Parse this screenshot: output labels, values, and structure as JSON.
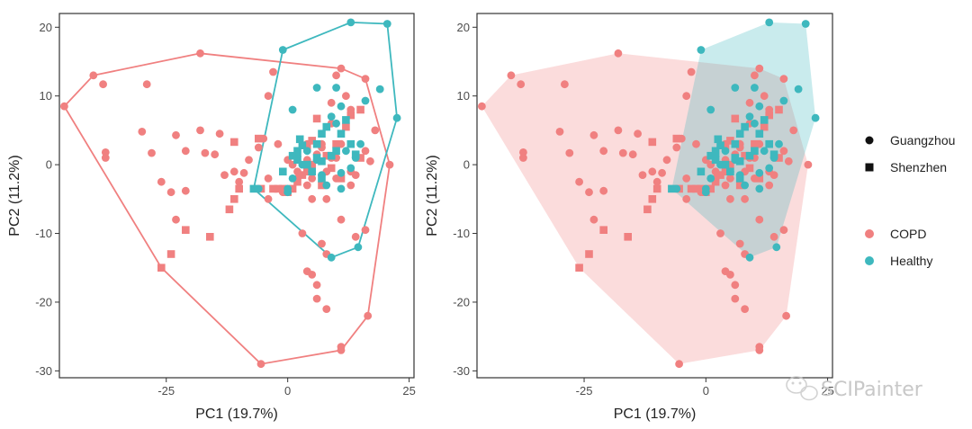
{
  "chart_data": [
    {
      "type": "scatter",
      "panel": "outline",
      "xlabel": "PC1 (19.7%)",
      "ylabel": "PC2 (11.2%)",
      "xlim": [
        -47,
        26
      ],
      "ylim": [
        -31,
        22
      ],
      "xticks": [
        -25,
        0,
        25
      ],
      "yticks": [
        -30,
        -20,
        -10,
        0,
        10,
        20
      ],
      "grid": false,
      "hull_style": "outline"
    },
    {
      "type": "scatter",
      "panel": "filled",
      "xlabel": "PC1 (19.7%)",
      "ylabel": "PC2 (11.2%)",
      "xlim": [
        -47,
        26
      ],
      "ylim": [
        -31,
        22
      ],
      "xticks": [
        -25,
        0,
        25
      ],
      "yticks": [
        -30,
        -20,
        -10,
        0,
        10,
        20
      ],
      "grid": false,
      "hull_style": "filled"
    }
  ],
  "groups": [
    {
      "name": "COPD",
      "color": "#F08080"
    },
    {
      "name": "Healthy",
      "color": "#3EB8BE"
    }
  ],
  "shapes": [
    {
      "name": "Guangzhou",
      "shape": "circle"
    },
    {
      "name": "Shenzhen",
      "shape": "square"
    }
  ],
  "points": {
    "COPD": {
      "Guangzhou": [
        [
          -46,
          8.5
        ],
        [
          -40,
          13
        ],
        [
          -38,
          11.7
        ],
        [
          -37.5,
          1.8
        ],
        [
          -37.5,
          1
        ],
        [
          -29,
          11.7
        ],
        [
          -30,
          4.8
        ],
        [
          -26,
          -2.5
        ],
        [
          -28,
          1.7
        ],
        [
          -24,
          -4
        ],
        [
          -23,
          -8
        ],
        [
          -23,
          4.3
        ],
        [
          -21,
          -3.8
        ],
        [
          -21,
          2
        ],
        [
          -18,
          5
        ],
        [
          -18,
          16.2
        ],
        [
          -17,
          1.7
        ],
        [
          -15,
          1.5
        ],
        [
          -14,
          4.5
        ],
        [
          -13,
          -1.5
        ],
        [
          -11,
          -1
        ],
        [
          -10,
          -2.5
        ],
        [
          -9,
          -1.2
        ],
        [
          -8,
          0.7
        ],
        [
          -6,
          2.5
        ],
        [
          -5,
          3.8
        ],
        [
          -5.5,
          -29
        ],
        [
          -4,
          10
        ],
        [
          -4,
          -2
        ],
        [
          -4,
          -5
        ],
        [
          -3,
          13.5
        ],
        [
          -2,
          3
        ],
        [
          -1,
          -4
        ],
        [
          0,
          0.7
        ],
        [
          1,
          0
        ],
        [
          2,
          -2
        ],
        [
          2,
          -1
        ],
        [
          3,
          -10
        ],
        [
          4,
          3
        ],
        [
          4,
          -3
        ],
        [
          4,
          0.7
        ],
        [
          4,
          -15.5
        ],
        [
          5,
          -16
        ],
        [
          5,
          -2
        ],
        [
          5,
          -5
        ],
        [
          6,
          -17.5
        ],
        [
          6,
          -19.5
        ],
        [
          6,
          1.5
        ],
        [
          7,
          2.5
        ],
        [
          7,
          -11.5
        ],
        [
          7,
          3
        ],
        [
          8,
          -1
        ],
        [
          8,
          -5
        ],
        [
          8,
          -13
        ],
        [
          8,
          -21
        ],
        [
          9,
          9
        ],
        [
          9,
          6
        ],
        [
          9,
          1
        ],
        [
          10,
          13
        ],
        [
          10,
          1
        ],
        [
          10,
          -2
        ],
        [
          11,
          -26.5
        ],
        [
          11,
          -27
        ],
        [
          11,
          -8
        ],
        [
          11,
          3
        ],
        [
          11,
          14
        ],
        [
          12,
          10
        ],
        [
          13,
          -3
        ],
        [
          13,
          -1
        ],
        [
          13,
          8
        ],
        [
          14,
          -1.5
        ],
        [
          14,
          -10.5
        ],
        [
          16,
          -9.5
        ],
        [
          16,
          12.5
        ],
        [
          16,
          2
        ],
        [
          16.5,
          -22
        ],
        [
          17,
          0.5
        ],
        [
          18,
          5
        ],
        [
          21,
          0
        ]
      ],
      "Shenzhen": [
        [
          -26,
          -15
        ],
        [
          -24,
          -13
        ],
        [
          -21,
          -9.5
        ],
        [
          -16,
          -10.5
        ],
        [
          -11,
          3.3
        ],
        [
          -12,
          -6.5
        ],
        [
          -11,
          -5
        ],
        [
          -10,
          -3.5
        ],
        [
          -5.5,
          -3.5
        ],
        [
          -6,
          3.8
        ],
        [
          -3,
          -3.5
        ],
        [
          -2,
          -3.5
        ],
        [
          -1,
          -3.5
        ],
        [
          0,
          -4
        ],
        [
          1,
          -3.5
        ],
        [
          2,
          -2.5
        ],
        [
          3,
          -1.5
        ],
        [
          4,
          -1
        ],
        [
          4,
          2.7
        ],
        [
          5,
          3.5
        ],
        [
          5,
          0
        ],
        [
          6,
          6.7
        ],
        [
          7,
          -3
        ],
        [
          8,
          1.3
        ],
        [
          9,
          -0.5
        ],
        [
          10,
          3
        ],
        [
          11,
          -2
        ],
        [
          12,
          5.5
        ],
        [
          13,
          7.2
        ],
        [
          15,
          1
        ],
        [
          15,
          8
        ]
      ]
    },
    "Healthy": {
      "Guangzhou": [
        [
          -1,
          16.7
        ],
        [
          1,
          8
        ],
        [
          6,
          11.2
        ],
        [
          10,
          11.2
        ],
        [
          11,
          8.5
        ],
        [
          11,
          -3.5
        ],
        [
          13,
          20.7
        ],
        [
          14,
          1
        ],
        [
          16,
          9.3
        ],
        [
          19,
          11
        ],
        [
          20.5,
          20.5
        ],
        [
          22.5,
          6.8
        ],
        [
          14.5,
          -12
        ],
        [
          9,
          -13.5
        ],
        [
          -6,
          -3.5
        ],
        [
          0,
          -4
        ],
        [
          0,
          -3.5
        ],
        [
          1,
          -2
        ],
        [
          2,
          1.3
        ],
        [
          3,
          0
        ],
        [
          4,
          2
        ],
        [
          5,
          -1
        ],
        [
          6,
          0.7
        ],
        [
          7,
          -1.5
        ],
        [
          8,
          -3
        ],
        [
          9,
          7
        ],
        [
          10,
          6
        ],
        [
          11,
          -1.2
        ],
        [
          12,
          2
        ],
        [
          13,
          -0.5
        ],
        [
          15,
          3
        ]
      ],
      "Shenzhen": [
        [
          -7,
          -3.5
        ],
        [
          -1,
          -1
        ],
        [
          1,
          1.3
        ],
        [
          2,
          0.7
        ],
        [
          2,
          2
        ],
        [
          2.5,
          3.7
        ],
        [
          3,
          2.8
        ],
        [
          4,
          0
        ],
        [
          5,
          -1
        ],
        [
          6,
          1
        ],
        [
          6,
          3
        ],
        [
          7,
          0.5
        ],
        [
          7,
          -2
        ],
        [
          7,
          4.5
        ],
        [
          8,
          5.5
        ],
        [
          9,
          1.3
        ],
        [
          10,
          2
        ],
        [
          11,
          4.5
        ],
        [
          12,
          6.5
        ],
        [
          13,
          3
        ],
        [
          14,
          1.5
        ]
      ]
    }
  },
  "hulls": {
    "COPD": [
      [
        -46,
        8.5
      ],
      [
        -40,
        13
      ],
      [
        -18,
        16.2
      ],
      [
        11,
        14
      ],
      [
        16,
        12.5
      ],
      [
        21,
        0
      ],
      [
        16.5,
        -22
      ],
      [
        11,
        -27
      ],
      [
        -5.5,
        -29
      ],
      [
        -26,
        -15
      ]
    ],
    "Healthy": [
      [
        -1,
        16.7
      ],
      [
        13,
        20.7
      ],
      [
        20.5,
        20.5
      ],
      [
        22.5,
        6.8
      ],
      [
        14.5,
        -12
      ],
      [
        9,
        -13.5
      ],
      [
        -7,
        -3.5
      ]
    ]
  },
  "watermark": "SCIPainter"
}
